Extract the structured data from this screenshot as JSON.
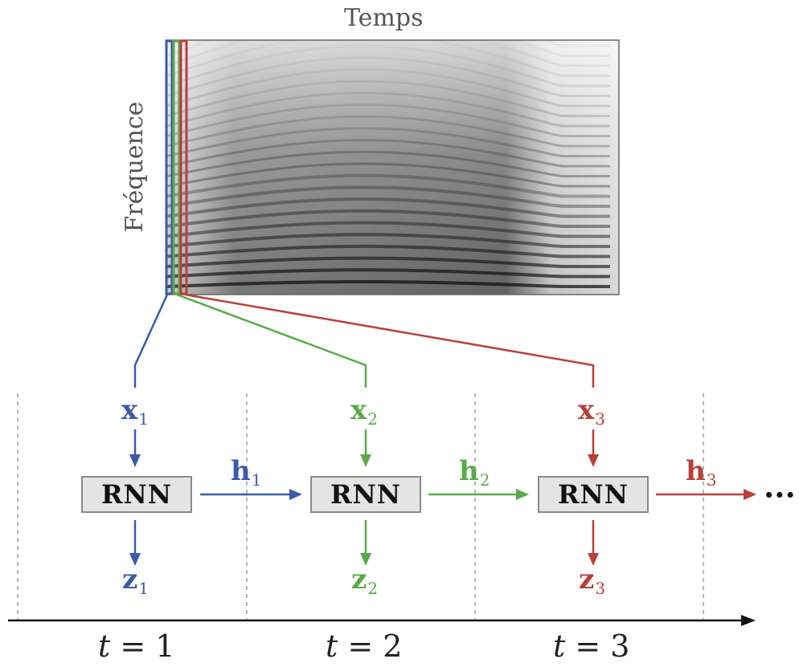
{
  "spectrogram": {
    "time_label": "Temps",
    "freq_label": "Fréquence"
  },
  "colors": {
    "blue": "#3a5ba8",
    "green": "#5aaa4a",
    "red": "#b8403c",
    "axis": "#111111",
    "divider": "#8a8a8a"
  },
  "steps": [
    {
      "input": "x",
      "hidden": "h",
      "output": "z",
      "index": "1",
      "cell": "RNN",
      "time_var": "t",
      "time_eq": "= 1",
      "color": "blue"
    },
    {
      "input": "x",
      "hidden": "h",
      "output": "z",
      "index": "2",
      "cell": "RNN",
      "time_var": "t",
      "time_eq": "= 2",
      "color": "green"
    },
    {
      "input": "x",
      "hidden": "h",
      "output": "z",
      "index": "3",
      "cell": "RNN",
      "time_var": "t",
      "time_eq": "= 3",
      "color": "red"
    }
  ],
  "continuation": "···"
}
